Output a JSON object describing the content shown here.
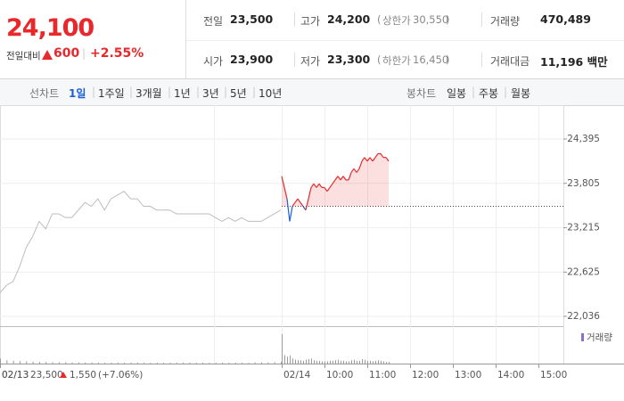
{
  "header": {
    "price": "24,100",
    "change_label": "전일대비",
    "change": "600",
    "rate": "+2.55%",
    "stats": [
      {
        "label": "전일",
        "value": "23,500"
      },
      {
        "label": "고가",
        "value": "24,200",
        "sub_label": "상한가",
        "sub_value": "30,550"
      },
      {
        "label": "거래량",
        "value": "470,489"
      },
      {
        "label": "시가",
        "value": "23,900"
      },
      {
        "label": "저가",
        "value": "23,300",
        "sub_label": "하한가",
        "sub_value": "16,450"
      },
      {
        "label": "거래대금",
        "value": "11,196 백만"
      }
    ]
  },
  "tabs": {
    "line_label": "선차트",
    "line_tabs": [
      "1일",
      "1주일",
      "3개월",
      "1년",
      "3년",
      "5년",
      "10년"
    ],
    "active": 0,
    "candle_label": "봉차트",
    "candle_tabs": [
      "일봉",
      "주봉",
      "월봉"
    ]
  },
  "chart_data": {
    "type": "line",
    "ylim": [
      21918,
      24644
    ],
    "yticks": [
      {
        "value": 22036,
        "label": "22,036"
      },
      {
        "value": 22625,
        "label": "22,625"
      },
      {
        "value": 23215,
        "label": "23,215"
      },
      {
        "value": 23805,
        "label": "23,805"
      },
      {
        "value": 24395,
        "label": "24,395"
      }
    ],
    "grid": true,
    "reference": 23500,
    "x_labels": [
      "02/13",
      "02/14",
      "10:00",
      "11:00",
      "12:00",
      "13:00",
      "14:00",
      "15:00"
    ],
    "prev_series": {
      "color": "#bdbdbd",
      "values": [
        22350,
        22450,
        22500,
        22700,
        22950,
        23100,
        23300,
        23200,
        23400,
        23400,
        23350,
        23350,
        23450,
        23550,
        23500,
        23600,
        23450,
        23600,
        23650,
        23700,
        23600,
        23600,
        23500,
        23500,
        23450,
        23450,
        23450,
        23400,
        23400,
        23400,
        23400,
        23400,
        23400,
        23350,
        23300,
        23350,
        23300,
        23350,
        23300,
        23300,
        23300,
        23350,
        23400,
        23450
      ]
    },
    "series": {
      "color": "#e8282b",
      "down_color": "#1a5fd6",
      "values": [
        23900,
        23750,
        23600,
        23300,
        23500,
        23550,
        23600,
        23550,
        23500,
        23450,
        23600,
        23750,
        23800,
        23750,
        23800,
        23750,
        23750,
        23700,
        23750,
        23800,
        23850,
        23900,
        23850,
        23900,
        23850,
        23850,
        23950,
        24000,
        23950,
        24000,
        24100,
        24150,
        24100,
        24150,
        24100,
        24150,
        24200,
        24200,
        24150,
        24150,
        24100
      ]
    },
    "volume": {
      "label": "거래량",
      "color": "#9b9b9b",
      "legend_color": "#8c6fc9",
      "ylim": [
        0,
        60000
      ],
      "prev_values": [
        9000,
        6000,
        5000,
        4500,
        4000,
        3500,
        3000,
        3000,
        2500,
        2500,
        2500,
        2000,
        2000,
        2000,
        2000,
        1500,
        1500,
        1500,
        1500,
        1500,
        1500,
        1500,
        1500,
        1500,
        1500,
        1500,
        1500,
        1500,
        1500,
        1500,
        1500,
        1500,
        1500,
        1500,
        1500,
        1500,
        1500,
        1500,
        1500,
        2000,
        2000,
        2000,
        2500,
        3000
      ],
      "values": [
        52000,
        15000,
        12000,
        14000,
        9000,
        7000,
        6000,
        6000,
        5000,
        7000,
        8000,
        9000,
        6000,
        5000,
        5000,
        4000,
        4000,
        4000,
        5000,
        5000,
        6000,
        7000,
        5000,
        5000,
        4000,
        4000,
        6000,
        7000,
        5000,
        5000,
        8000,
        7000,
        5000,
        5000,
        4000,
        5000,
        6000,
        5000,
        4000,
        3000,
        3000
      ]
    },
    "prev_note": {
      "date": "02/13",
      "close": "23,500",
      "change": "1,550",
      "rate": "(+7.06%)"
    }
  }
}
